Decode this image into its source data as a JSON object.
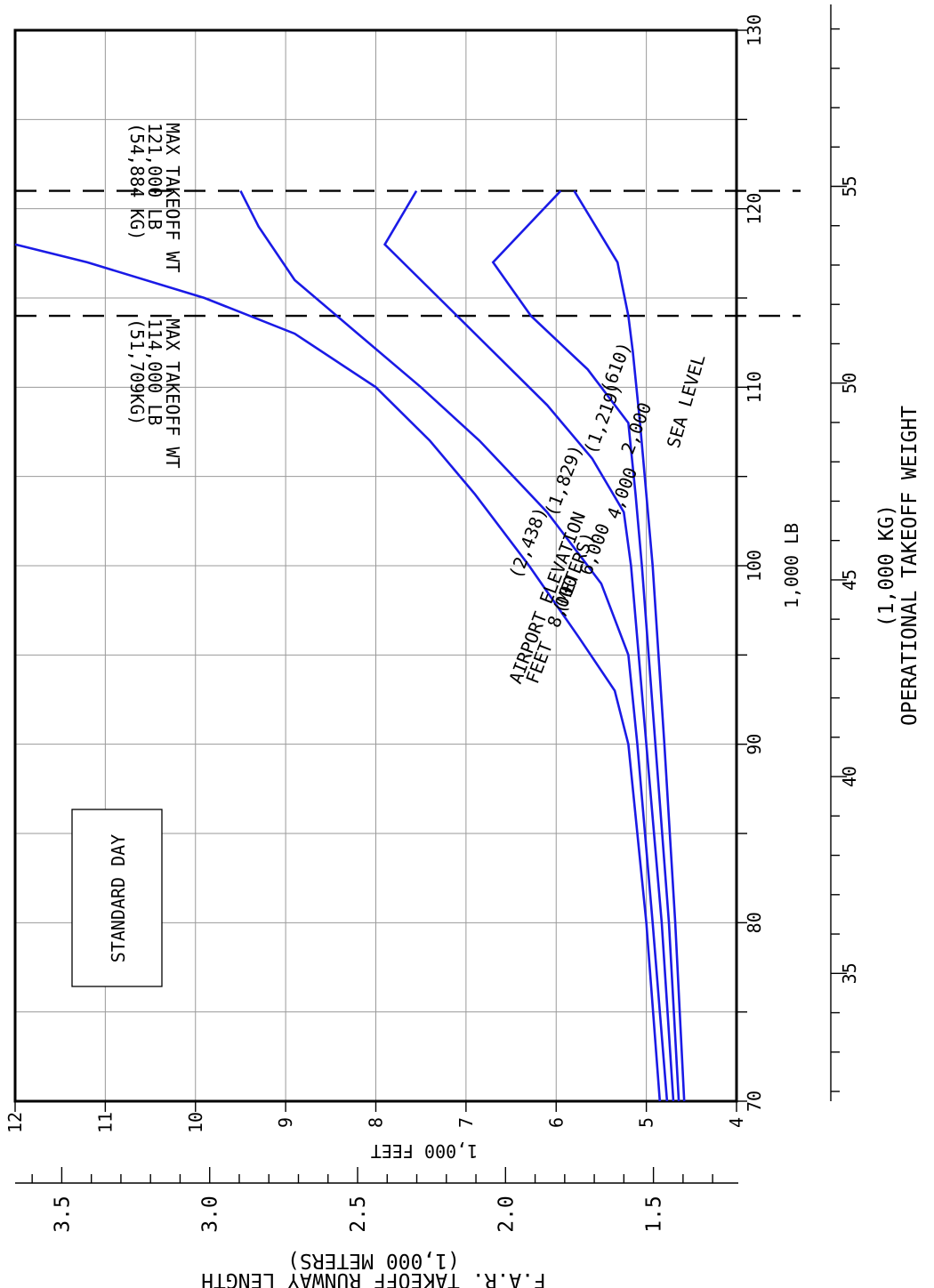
{
  "chart_data": {
    "type": "line",
    "title": "",
    "note": "STANDARD DAY",
    "x_axis": {
      "title": "OPERATIONAL TAKEOFF WEIGHT",
      "unit_primary": "1,000 LB",
      "unit_secondary": "(1,000 KG)",
      "range_lb": [
        70,
        130
      ],
      "ticks_lb": [
        70,
        80,
        90,
        100,
        110,
        120,
        130
      ],
      "range_kg": [
        32,
        59
      ],
      "ticks_kg": [
        35,
        40,
        45,
        50,
        55
      ],
      "tick_labels": {
        "l70": "70",
        "l80": "80",
        "l90": "90",
        "l100": "100",
        "l110": "110",
        "l120": "120",
        "l130": "130",
        "k35": "35",
        "k40": "40",
        "k45": "45",
        "k50": "50",
        "k55": "55"
      }
    },
    "y_axis": {
      "title": "F.A.R. TAKEOFF RUNWAY LENGTH",
      "unit_primary": "1,000 FEET",
      "unit_secondary": "(1,000 METERS)",
      "range_ft": [
        4,
        12
      ],
      "ticks_ft": [
        4,
        5,
        6,
        7,
        8,
        9,
        10,
        11,
        12
      ],
      "range_m": [
        1.2,
        3.8
      ],
      "ticks_m": [
        1.5,
        2.0,
        2.5,
        3.0,
        3.5
      ],
      "tick_labels": {
        "f4": "4",
        "f5": "5",
        "f6": "6",
        "f7": "7",
        "f8": "8",
        "f9": "9",
        "f10": "10",
        "f11": "11",
        "f12": "12",
        "m15": "1.5",
        "m20": "2.0",
        "m25": "2.5",
        "m30": "3.0",
        "m35": "3.5"
      }
    },
    "grid": true,
    "reference_lines": [
      {
        "x": 114,
        "lines": [
          "MAX TAKEOFF WT",
          "114,000 LB",
          "(51,709KG)"
        ]
      },
      {
        "x": 121,
        "lines": [
          "MAX TAKEOFF WT",
          "121,000 LB",
          "(54,884 KG)"
        ]
      }
    ],
    "legend_title": [
      "AIRPORT ELEVATION",
      "FEET   (METERS)"
    ],
    "series_color": "#1a1ae6",
    "series": [
      {
        "name": "SEA LEVEL",
        "x": [
          70,
          80,
          90,
          100,
          104,
          108,
          112,
          114,
          117,
          121
        ],
        "y": [
          4.58,
          4.68,
          4.8,
          4.93,
          5.0,
          5.07,
          5.15,
          5.2,
          5.32,
          5.8
        ]
      },
      {
        "name": "2,000 (610)",
        "x": [
          70,
          80,
          90,
          100,
          104,
          108,
          111,
          114,
          117,
          121
        ],
        "y": [
          4.64,
          4.75,
          4.9,
          5.05,
          5.12,
          5.2,
          5.65,
          6.28,
          6.7,
          5.95
        ],
        "label_parts": [
          "2,000",
          "(610)"
        ]
      },
      {
        "name": "4,000 (1,219)",
        "x": [
          70,
          80,
          90,
          100,
          103,
          106,
          109,
          112,
          115,
          118,
          121
        ],
        "y": [
          4.7,
          4.83,
          5.0,
          5.17,
          5.25,
          5.6,
          6.1,
          6.7,
          7.3,
          7.9,
          7.55
        ],
        "label_parts": [
          "4,000",
          "(1,219)"
        ]
      },
      {
        "name": "6,000 (1,829)",
        "x": [
          70,
          80,
          90,
          95,
          99,
          103,
          107,
          110,
          113,
          116,
          119,
          121
        ],
        "y": [
          4.77,
          4.93,
          5.1,
          5.2,
          5.5,
          6.1,
          6.85,
          7.5,
          8.2,
          8.9,
          9.3,
          9.5
        ],
        "label_parts": [
          "6,000",
          "(1,829)"
        ]
      },
      {
        "name": "8,000 (2,438)",
        "x": [
          70,
          80,
          90,
          93,
          96,
          100,
          104,
          107,
          110,
          113,
          115,
          117,
          118
        ],
        "y": [
          4.85,
          5.0,
          5.2,
          5.35,
          5.75,
          6.3,
          6.9,
          7.4,
          8.0,
          8.9,
          9.9,
          11.2,
          12.0
        ],
        "label_parts": [
          "8,000",
          "(2,438)"
        ]
      }
    ]
  }
}
